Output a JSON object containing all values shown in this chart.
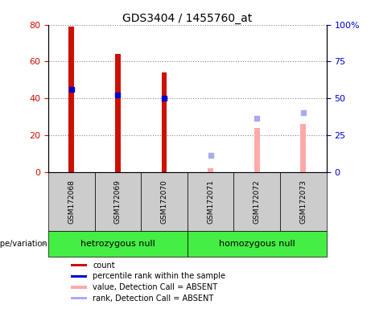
{
  "title": "GDS3404 / 1455760_at",
  "samples": [
    "GSM172068",
    "GSM172069",
    "GSM172070",
    "GSM172071",
    "GSM172072",
    "GSM172073"
  ],
  "groups": [
    "hetrozygous null",
    "homozygous null"
  ],
  "count_values": [
    79,
    64,
    54,
    null,
    null,
    null
  ],
  "rank_values": [
    45,
    42,
    40,
    null,
    null,
    null
  ],
  "absent_value_values": [
    null,
    null,
    null,
    2,
    24,
    26
  ],
  "absent_rank_values": [
    null,
    null,
    null,
    9,
    29,
    32
  ],
  "left_yticks": [
    0,
    20,
    40,
    60,
    80
  ],
  "right_yticks": [
    0,
    25,
    50,
    75,
    100
  ],
  "right_ylabels": [
    "0",
    "25",
    "50",
    "75",
    "100%"
  ],
  "color_count": "#cc1100",
  "color_count_absent": "#ffaaaa",
  "color_rank": "#0000cc",
  "color_rank_absent": "#aaaaee",
  "color_group_light": "#aaffaa",
  "color_group_bright": "#44ee44",
  "color_sample_bg": "#cccccc",
  "bar_width": 0.12,
  "marker_size": 4,
  "legend_items": [
    {
      "color": "#cc1100",
      "label": "count"
    },
    {
      "color": "#0000cc",
      "label": "percentile rank within the sample"
    },
    {
      "color": "#ffaaaa",
      "label": "value, Detection Call = ABSENT"
    },
    {
      "color": "#aaaaee",
      "label": "rank, Detection Call = ABSENT"
    }
  ]
}
